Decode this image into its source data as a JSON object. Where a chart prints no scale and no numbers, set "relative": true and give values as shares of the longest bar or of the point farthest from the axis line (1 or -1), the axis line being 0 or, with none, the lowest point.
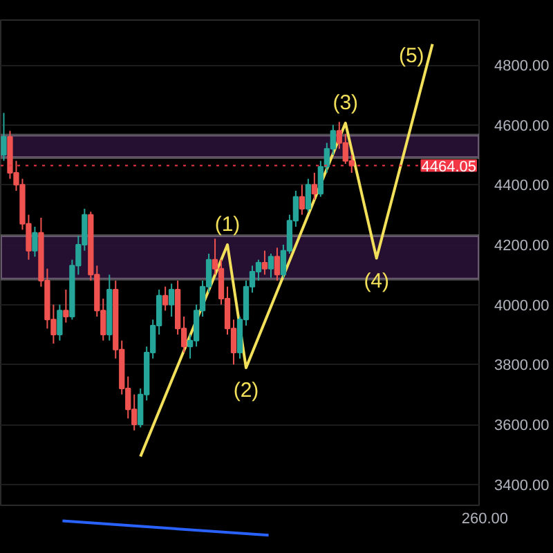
{
  "chart_data": [
    {
      "type": "candlestick",
      "categories": [
        null,
        null,
        null,
        null,
        null,
        null,
        null,
        null,
        null,
        null,
        null,
        null,
        null,
        null,
        null,
        null,
        null,
        null,
        null,
        null,
        null,
        null,
        null,
        null,
        null,
        null,
        null,
        null,
        null,
        null,
        null,
        null,
        null,
        null,
        null,
        null,
        null,
        null,
        null,
        null,
        null,
        null,
        null,
        null,
        null,
        null,
        null,
        null,
        null,
        null,
        null,
        null,
        null,
        null,
        null,
        null,
        null,
        null,
        null,
        null,
        null,
        null,
        null,
        null,
        null,
        null,
        null,
        null,
        null,
        null,
        null,
        null,
        null,
        null,
        null,
        null,
        null
      ],
      "ohlc": [
        [
          4500,
          4640,
          4480,
          4560
        ],
        [
          4560,
          4580,
          4420,
          4440
        ],
        [
          4440,
          4480,
          4380,
          4400
        ],
        [
          4400,
          4420,
          4250,
          4270
        ],
        [
          4270,
          4300,
          4150,
          4180
        ],
        [
          4180,
          4260,
          4160,
          4240
        ],
        [
          4240,
          4290,
          4060,
          4080
        ],
        [
          4080,
          4120,
          3920,
          3950
        ],
        [
          3950,
          4000,
          3870,
          3900
        ],
        [
          3900,
          4000,
          3880,
          3980
        ],
        [
          3980,
          4050,
          3940,
          3960
        ],
        [
          3960,
          4150,
          3950,
          4130
        ],
        [
          4130,
          4230,
          4100,
          4200
        ],
        [
          4200,
          4320,
          4180,
          4300
        ],
        [
          4300,
          4310,
          4080,
          4100
        ],
        [
          4100,
          4130,
          3960,
          3980
        ],
        [
          3980,
          4020,
          3880,
          3900
        ],
        [
          3900,
          4100,
          3880,
          4050
        ],
        [
          4050,
          4080,
          3820,
          3850
        ],
        [
          3850,
          3880,
          3700,
          3720
        ],
        [
          3720,
          3760,
          3620,
          3650
        ],
        [
          3650,
          3700,
          3580,
          3600
        ],
        [
          3600,
          3720,
          3590,
          3700
        ],
        [
          3700,
          3860,
          3680,
          3840
        ],
        [
          3840,
          3950,
          3820,
          3930
        ],
        [
          3930,
          4050,
          3900,
          4030
        ],
        [
          4030,
          4060,
          3980,
          4000
        ],
        [
          4000,
          4070,
          3960,
          4050
        ],
        [
          4050,
          4080,
          3900,
          3920
        ],
        [
          3920,
          3960,
          3840,
          3860
        ],
        [
          3860,
          3900,
          3820,
          3880
        ],
        [
          3880,
          4000,
          3860,
          3980
        ],
        [
          3980,
          4080,
          3960,
          4060
        ],
        [
          4060,
          4170,
          4040,
          4150
        ],
        [
          4150,
          4220,
          4100,
          4120
        ],
        [
          4120,
          4150,
          4000,
          4020
        ],
        [
          4020,
          4060,
          3900,
          3920
        ],
        [
          3920,
          3950,
          3800,
          3840
        ],
        [
          3840,
          3960,
          3820,
          3950
        ],
        [
          3950,
          4080,
          3930,
          4060
        ],
        [
          4060,
          4130,
          4040,
          4110
        ],
        [
          4110,
          4150,
          4080,
          4140
        ],
        [
          4140,
          4180,
          4100,
          4120
        ],
        [
          4120,
          4170,
          4090,
          4160
        ],
        [
          4160,
          4190,
          4080,
          4100
        ],
        [
          4100,
          4200,
          4090,
          4180
        ],
        [
          4180,
          4300,
          4170,
          4280
        ],
        [
          4280,
          4380,
          4260,
          4360
        ],
        [
          4360,
          4400,
          4300,
          4320
        ],
        [
          4320,
          4420,
          4310,
          4400
        ],
        [
          4400,
          4440,
          4350,
          4370
        ],
        [
          4370,
          4480,
          4360,
          4460
        ],
        [
          4460,
          4540,
          4440,
          4520
        ],
        [
          4520,
          4600,
          4500,
          4580
        ],
        [
          4580,
          4610,
          4520,
          4540
        ],
        [
          4540,
          4570,
          4470,
          4480
        ],
        [
          4480,
          4500,
          4440,
          4464.05
        ],
        null,
        null,
        null,
        null,
        null,
        null,
        null,
        null,
        null,
        null,
        null,
        null,
        null,
        null,
        null,
        null,
        null,
        null,
        null,
        null
      ],
      "colors": [
        "#26a69a",
        "#ef5350",
        "#ef5350",
        "#ef5350",
        "#ef5350",
        "#26a69a",
        "#ef5350",
        "#ef5350",
        "#ef5350",
        "#26a69a",
        "#ef5350",
        "#26a69a",
        "#26a69a",
        "#26a69a",
        "#ef5350",
        "#ef5350",
        "#ef5350",
        "#26a69a",
        "#ef5350",
        "#ef5350",
        "#ef5350",
        "#ef5350",
        "#26a69a",
        "#26a69a",
        "#26a69a",
        "#26a69a",
        "#ef5350",
        "#26a69a",
        "#ef5350",
        "#ef5350",
        "#26a69a",
        "#26a69a",
        "#26a69a",
        "#26a69a",
        "#ef5350",
        "#ef5350",
        "#ef5350",
        "#ef5350",
        "#26a69a",
        "#26a69a",
        "#26a69a",
        "#26a69a",
        "#ef5350",
        "#26a69a",
        "#ef5350",
        "#26a69a",
        "#26a69a",
        "#26a69a",
        "#ef5350",
        "#26a69a",
        "#ef5350",
        "#26a69a",
        "#26a69a",
        "#26a69a",
        "#ef5350",
        "#ef5350",
        "#ef5350",
        null,
        null,
        null,
        null,
        null,
        null,
        null,
        null,
        null,
        null,
        null,
        null,
        null,
        null,
        null,
        null,
        null,
        null,
        null,
        null
      ],
      "series": [
        {
          "type": "line",
          "color": "#f2e05a",
          "values": [
            null,
            null,
            null,
            null,
            null,
            null,
            null,
            null,
            null,
            null,
            null,
            null,
            null,
            null,
            null,
            null,
            null,
            null,
            null,
            null,
            null,
            null,
            3493,
            null,
            null,
            null,
            null,
            null,
            null,
            null,
            null,
            null,
            null,
            null,
            null,
            null,
            4200,
            null,
            null,
            3789,
            null,
            null,
            null,
            null,
            null,
            null,
            null,
            null,
            null,
            null,
            null,
            null,
            null,
            null,
            null,
            4606,
            null,
            null,
            null,
            null,
            4155,
            null,
            null,
            null,
            null,
            null,
            null,
            null,
            null,
            4870,
            null,
            null,
            null,
            null,
            null,
            null,
            null
          ]
        }
      ],
      "annotations": [
        "(1)",
        "(2)",
        "(3)",
        "(4)",
        "(5)"
      ],
      "bands": [
        {
          "axis": "y",
          "from": 4085,
          "to": 4230,
          "color": "#2a1236"
        },
        {
          "axis": "y",
          "from": 4491,
          "to": 4566,
          "color": "#2a1236"
        }
      ],
      "ref_lines": [
        {
          "axis": "y",
          "value": 4464.05,
          "label": "4464.05",
          "color": "#f23645",
          "line_style": "dotted"
        }
      ],
      "ylim": [
        3330,
        4950
      ],
      "yticks": [
        {
          "value": 3400,
          "label": "3400.00"
        },
        {
          "value": 3600,
          "label": "3600.00"
        },
        {
          "value": 3800,
          "label": "3800.00"
        },
        {
          "value": 4000,
          "label": "4000.00"
        },
        {
          "value": 4200,
          "label": "4200.00"
        },
        {
          "value": 4400,
          "label": "4400.00"
        },
        {
          "value": 4600,
          "label": "4600.00"
        },
        {
          "value": 4800,
          "label": "4800.00"
        }
      ],
      "tick_labels": "y",
      "grid": "y"
    },
    {
      "type": "line",
      "relative": true,
      "categories": [
        null,
        null
      ],
      "values": [
        1,
        0
      ],
      "color": "#2962ff",
      "annotations": [
        "260.00"
      ]
    }
  ]
}
